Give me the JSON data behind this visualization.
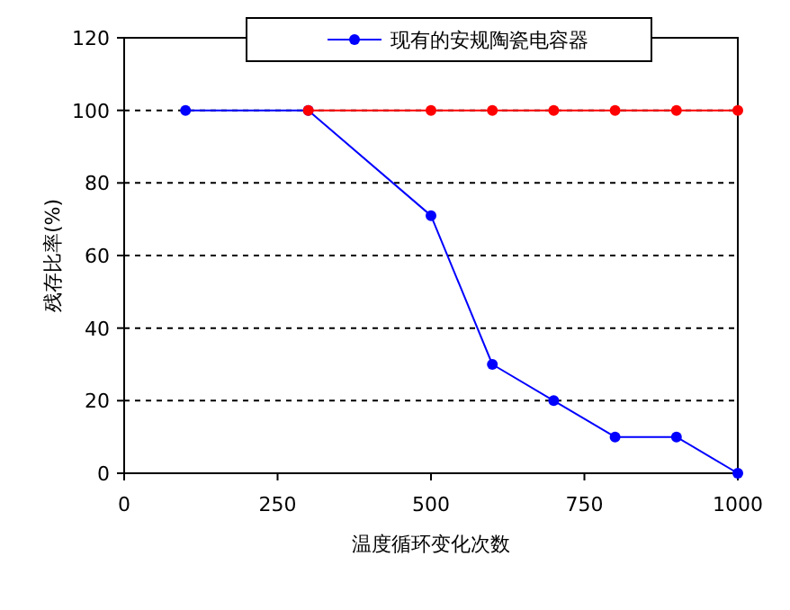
{
  "chart_data": {
    "type": "line",
    "xlabel": "温度循环变化次数",
    "ylabel": "残存比率(%)",
    "xlim": [
      0,
      1000
    ],
    "ylim": [
      0,
      120
    ],
    "xticks": [
      0,
      250,
      500,
      750,
      1000
    ],
    "yticks": [
      0,
      20,
      40,
      60,
      80,
      100,
      120
    ],
    "grid": "y",
    "legend": "top",
    "marker": "circle",
    "series": [
      {
        "color": "#ff0000",
        "x": [
          300,
          500,
          600,
          700,
          800,
          900,
          1000
        ],
        "values": [
          100,
          100,
          100,
          100,
          100,
          100,
          100
        ]
      },
      {
        "name": "现有的安规陶瓷电容器",
        "color": "#0000ff",
        "x": [
          100,
          300,
          500,
          600,
          700,
          800,
          900,
          1000
        ],
        "values": [
          100,
          100,
          71,
          30,
          20,
          10,
          10,
          0
        ]
      }
    ]
  }
}
